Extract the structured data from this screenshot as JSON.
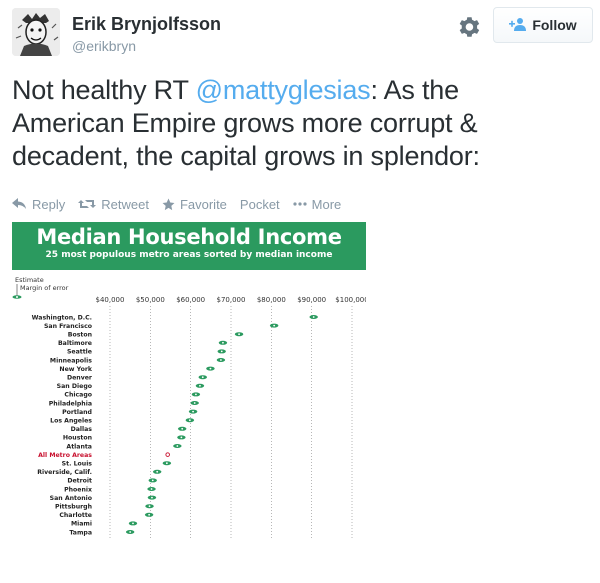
{
  "user": {
    "name": "Erik Brynjolfsson",
    "handle": "@erikbryn"
  },
  "follow_button": {
    "label": "Follow"
  },
  "tweet": {
    "text_before": "Not healthy RT ",
    "mention": "@mattyglesias",
    "text_after": ": As the American Empire grows more corrupt & decadent, the capital grows in splendor:"
  },
  "actions": {
    "reply": "Reply",
    "retweet": "Retweet",
    "favorite": "Favorite",
    "pocket": "Pocket",
    "more": "More"
  },
  "icons": {
    "settings": "gear-icon",
    "follow": "add-person-icon",
    "reply": "reply-arrow-icon",
    "retweet": "retweet-icon",
    "favorite": "star-icon",
    "more": "ellipsis-icon"
  },
  "colors": {
    "accent": "#55acee",
    "chart_banner": "#2b9a5f",
    "dot": "#2b9a5f",
    "highlight": "#c8102e",
    "muted": "#8899a6"
  },
  "chart_data": {
    "type": "scatter",
    "title": "Median Household Income",
    "subtitle": "25 most populous metro areas sorted by median income",
    "legend": {
      "estimate": "Estimate",
      "margin": "Margin of error"
    },
    "x_ticks": [
      {
        "value": 40000,
        "label": "$40,000"
      },
      {
        "value": 50000,
        "label": "$50,000"
      },
      {
        "value": 60000,
        "label": "$60,000"
      },
      {
        "value": 70000,
        "label": "$70,000"
      },
      {
        "value": 80000,
        "label": "$80,000"
      },
      {
        "value": 90000,
        "label": "$90,000"
      },
      {
        "value": 100000,
        "label": "$100,000"
      }
    ],
    "xlim": [
      40000,
      100000
    ],
    "grid": true,
    "highlight_category": "All Metro Areas",
    "categories": [
      "Washington, D.C.",
      "San Francisco",
      "Boston",
      "Baltimore",
      "Seattle",
      "Minneapolis",
      "New York",
      "Denver",
      "San Diego",
      "Chicago",
      "Philadelphia",
      "Portland",
      "Los Angeles",
      "Dallas",
      "Houston",
      "Atlanta",
      "All Metro Areas",
      "St. Louis",
      "Riverside, Calif.",
      "Detroit",
      "Phoenix",
      "San Antonio",
      "Pittsburgh",
      "Charlotte",
      "Miami",
      "Tampa"
    ],
    "values": [
      90500,
      80700,
      72000,
      68000,
      67700,
      67500,
      64900,
      63000,
      62300,
      61300,
      61000,
      60600,
      59800,
      57900,
      57700,
      56700,
      54300,
      54100,
      51700,
      50600,
      50300,
      50400,
      49800,
      49700,
      45700,
      45000
    ]
  }
}
